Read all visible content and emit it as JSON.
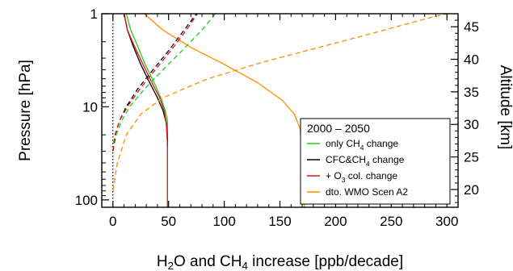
{
  "chart_data": {
    "type": "line",
    "xlabel_parts": [
      "H",
      "2",
      "O and CH",
      "4",
      " increase [ppb/decade]"
    ],
    "ylabel": "Pressure [hPa]",
    "y2label": "Altitude [km]",
    "xlim": [
      -10,
      310
    ],
    "ylim_hpa": [
      1,
      120
    ],
    "yscale": "log",
    "x_ticks": [
      0,
      50,
      100,
      150,
      200,
      250,
      300
    ],
    "y_ticks": [
      1,
      10,
      100
    ],
    "y2_ticks": [
      20,
      25,
      30,
      35,
      40,
      45
    ],
    "legend": {
      "title": "2000 – 2050",
      "position": "lower-right",
      "entries": [
        {
          "parts": [
            "only CH",
            "4",
            " change"
          ],
          "color": "#22cc22"
        },
        {
          "parts": [
            "CFC&CH",
            "4",
            " change"
          ],
          "color": "#000000"
        },
        {
          "parts": [
            "+ O",
            "3",
            " col. change"
          ],
          "color": "#dd1111"
        },
        {
          "parts": [
            "dto. WMO Scen A2"
          ],
          "color": "#ff8c00"
        }
      ]
    },
    "series": [
      {
        "key": "ch4_only_h2o",
        "color": "#22cc22",
        "dash": false,
        "points": [
          [
            12,
            1
          ],
          [
            16,
            1.5
          ],
          [
            22,
            2.2
          ],
          [
            29,
            3.5
          ],
          [
            37,
            5.5
          ],
          [
            43,
            8
          ],
          [
            47,
            11
          ],
          [
            49,
            14
          ],
          [
            49,
            20
          ],
          [
            49,
            27
          ]
        ]
      },
      {
        "key": "cfc_h2o",
        "color": "#000000",
        "dash": false,
        "points": [
          [
            10,
            1
          ],
          [
            13,
            1.5
          ],
          [
            18,
            2.2
          ],
          [
            25,
            3.5
          ],
          [
            33,
            5.5
          ],
          [
            40,
            8
          ],
          [
            45,
            11
          ],
          [
            48,
            15
          ],
          [
            49,
            22
          ],
          [
            49,
            27
          ]
        ]
      },
      {
        "key": "o3_h2o",
        "color": "#dd1111",
        "dash": false,
        "points": [
          [
            10,
            1
          ],
          [
            13,
            1.5
          ],
          [
            19,
            2.2
          ],
          [
            27,
            3.5
          ],
          [
            35,
            5.5
          ],
          [
            42,
            8
          ],
          [
            46,
            11
          ],
          [
            48,
            15
          ],
          [
            49,
            25
          ],
          [
            49,
            60
          ],
          [
            49,
            120
          ]
        ]
      },
      {
        "key": "wmo_h2o",
        "color": "#ff8c00",
        "dash": false,
        "points": [
          [
            28,
            1
          ],
          [
            45,
            1.5
          ],
          [
            70,
            2.3
          ],
          [
            100,
            3.5
          ],
          [
            130,
            5.5
          ],
          [
            152,
            8.5
          ],
          [
            163,
            12
          ],
          [
            168,
            17
          ],
          [
            170,
            30
          ],
          [
            171,
            60
          ],
          [
            172,
            120
          ]
        ]
      },
      {
        "key": "ch4_only_ch4",
        "color": "#22cc22",
        "dash": true,
        "points": [
          [
            0,
            30
          ],
          [
            3,
            20
          ],
          [
            8,
            14
          ],
          [
            15,
            10
          ],
          [
            28,
            6.5
          ],
          [
            45,
            4
          ],
          [
            62,
            2.5
          ],
          [
            80,
            1.5
          ],
          [
            92,
            1
          ]
        ]
      },
      {
        "key": "cfc_ch4",
        "color": "#000000",
        "dash": true,
        "points": [
          [
            0,
            30
          ],
          [
            2,
            20
          ],
          [
            6,
            14
          ],
          [
            12,
            10
          ],
          [
            22,
            6.5
          ],
          [
            36,
            4
          ],
          [
            50,
            2.5
          ],
          [
            64,
            1.5
          ],
          [
            75,
            1
          ]
        ]
      },
      {
        "key": "o3_ch4",
        "color": "#dd1111",
        "dash": true,
        "points": [
          [
            0,
            30
          ],
          [
            2,
            20
          ],
          [
            6,
            14
          ],
          [
            13,
            10
          ],
          [
            24,
            6.5
          ],
          [
            38,
            4
          ],
          [
            52,
            2.5
          ],
          [
            66,
            1.5
          ],
          [
            76,
            1
          ]
        ]
      },
      {
        "key": "wmo_ch4",
        "color": "#ff8c00",
        "dash": true,
        "points": [
          [
            0,
            80
          ],
          [
            4,
            40
          ],
          [
            12,
            20
          ],
          [
            25,
            12
          ],
          [
            45,
            8
          ],
          [
            85,
            5
          ],
          [
            135,
            3.3
          ],
          [
            185,
            2.3
          ],
          [
            235,
            1.6
          ],
          [
            285,
            1.1
          ],
          [
            300,
            1
          ]
        ]
      }
    ]
  }
}
